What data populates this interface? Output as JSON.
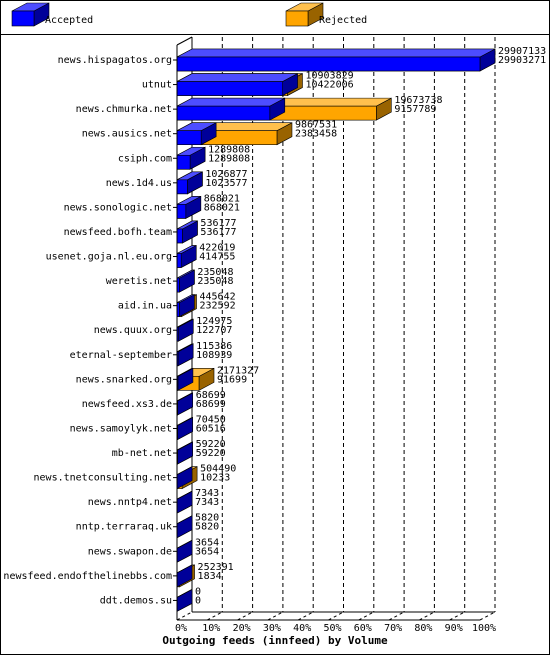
{
  "chart_data": {
    "type": "bar",
    "orientation": "horizontal",
    "title": "Outgoing feeds (innfeed) by Volume",
    "categories": [
      "news.hispagatos.org",
      "utnut",
      "news.chmurka.net",
      "news.ausics.net",
      "csiph.com",
      "news.1d4.us",
      "news.sonologic.net",
      "newsfeed.bofh.team",
      "usenet.goja.nl.eu.org",
      "weretis.net",
      "aid.in.ua",
      "news.quux.org",
      "eternal-september",
      "news.snarked.org",
      "newsfeed.xs3.de",
      "news.samoylyk.net",
      "mb-net.net",
      "news.tnetconsulting.net",
      "news.nntp4.net",
      "nntp.terraraq.uk",
      "news.swapon.de",
      "newsfeed.endofthelinebbs.com",
      "ddt.demos.su"
    ],
    "series": [
      {
        "name": "Accepted",
        "color": "#0000ff",
        "values": [
          29903271,
          10422006,
          9157789,
          2383458,
          1289808,
          1023577,
          868021,
          536177,
          414755,
          235048,
          232592,
          122707,
          108939,
          91699,
          68699,
          60516,
          59220,
          10233,
          7343,
          5820,
          3654,
          1834,
          0
        ]
      },
      {
        "name": "Rejected",
        "color": "#ffa500",
        "values": [
          29907133,
          10903829,
          19673738,
          9867531,
          1289808,
          1026877,
          868021,
          536177,
          422019,
          235048,
          445642,
          124975,
          115386,
          2171327,
          68699,
          70450,
          59220,
          504490,
          7343,
          5820,
          3654,
          252391,
          0
        ]
      }
    ],
    "xlim": [
      0,
      29907133
    ],
    "xticks": [
      {
        "value": 0,
        "label": "0%"
      },
      {
        "value": 2990713.3,
        "label": "10%"
      },
      {
        "value": 5981426.6,
        "label": "20%"
      },
      {
        "value": 8972139.9,
        "label": "30%"
      },
      {
        "value": 11962853.2,
        "label": "40%"
      },
      {
        "value": 14953566.5,
        "label": "50%"
      },
      {
        "value": 17944279.8,
        "label": "60%"
      },
      {
        "value": 20934993.1,
        "label": "70%"
      },
      {
        "value": 23925706.4,
        "label": "80%"
      },
      {
        "value": 26916419.7,
        "label": "90%"
      },
      {
        "value": 29907133,
        "label": "100%"
      }
    ],
    "grid": true
  }
}
